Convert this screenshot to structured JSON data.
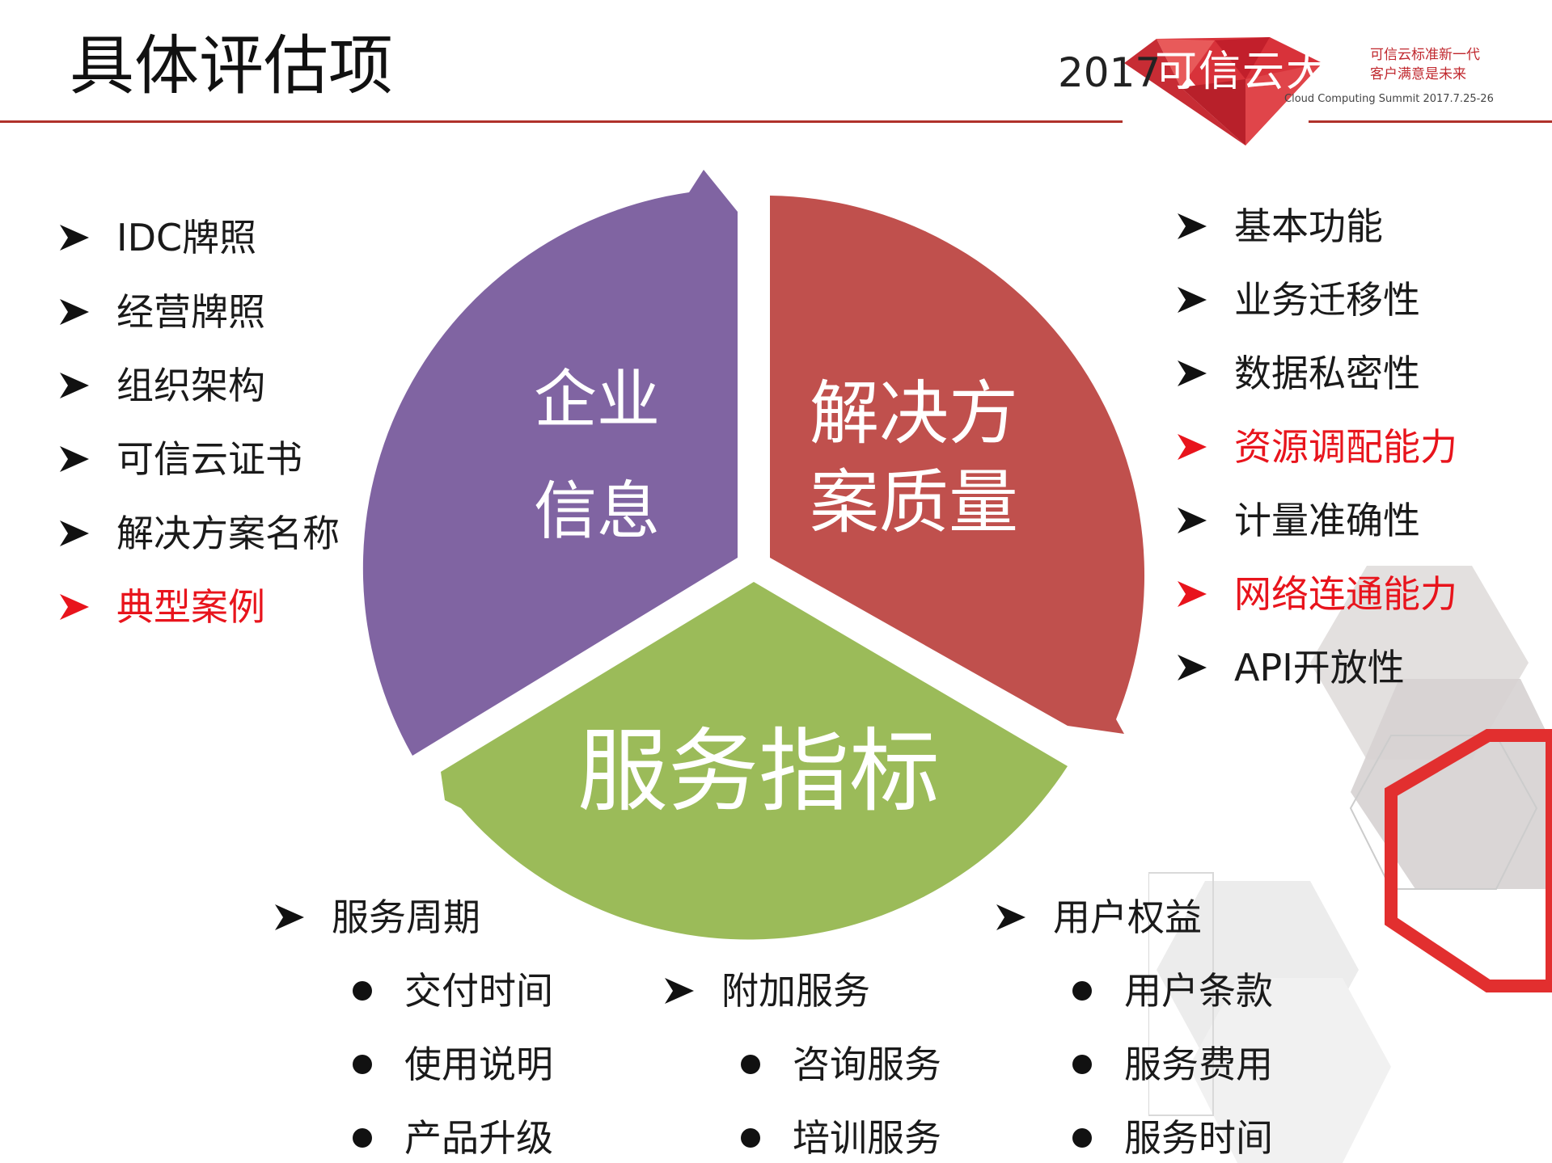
{
  "title": "具体评估项",
  "logo": {
    "year": "2017",
    "name": "可信云大会",
    "slogan_line1": "可信云标准新一代",
    "slogan_line2": "客户满意是未来",
    "subtitle": "Cloud Computing Summit 2017.7.25-26"
  },
  "colors": {
    "accent_red": "#e8141c",
    "rule": "#b0322b",
    "segment_purple": "#8064a2",
    "segment_red": "#c0504d",
    "segment_green": "#9bbb59"
  },
  "cycle": {
    "enterprise": {
      "line1": "企业",
      "line2": "信息"
    },
    "solution": {
      "line1": "解决方",
      "line2": "案质量"
    },
    "service": {
      "label": "服务指标"
    }
  },
  "enterprise_list": [
    {
      "label": "IDC牌照",
      "highlight": false
    },
    {
      "label": "经营牌照",
      "highlight": false
    },
    {
      "label": "组织架构",
      "highlight": false
    },
    {
      "label": "可信云证书",
      "highlight": false
    },
    {
      "label": "解决方案名称",
      "highlight": false
    },
    {
      "label": "典型案例",
      "highlight": true
    }
  ],
  "solution_list": [
    {
      "label": "基本功能",
      "highlight": false
    },
    {
      "label": "业务迁移性",
      "highlight": false
    },
    {
      "label": "数据私密性",
      "highlight": false
    },
    {
      "label": "资源调配能力",
      "highlight": true
    },
    {
      "label": "计量准确性",
      "highlight": false
    },
    {
      "label": "网络连通能力",
      "highlight": true
    },
    {
      "label": "API开放性",
      "highlight": false
    }
  ],
  "service_groups": [
    {
      "label": "服务周期",
      "items": [
        "交付时间",
        "使用说明",
        "产品升级"
      ]
    },
    {
      "label": "附加服务",
      "items": [
        "咨询服务",
        "培训服务"
      ]
    },
    {
      "label": "用户权益",
      "items": [
        "用户条款",
        "服务费用",
        "服务时间"
      ]
    }
  ]
}
